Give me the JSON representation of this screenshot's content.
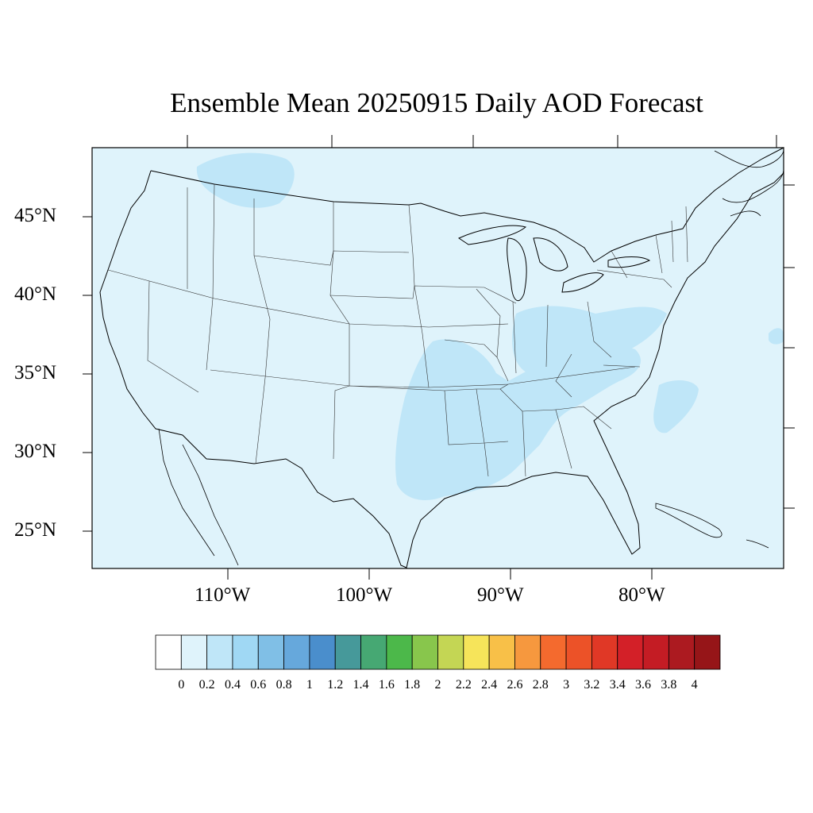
{
  "title": "Ensemble Mean 20250915 Daily AOD Forecast",
  "lat_labels": [
    "45°N",
    "40°N",
    "35°N",
    "30°N",
    "25°N"
  ],
  "lon_labels": [
    "110°W",
    "100°W",
    "90°W",
    "80°W"
  ],
  "colors": {
    "background": "#dff3fb",
    "highlight": "#bfe6f8",
    "coast": "#000000",
    "state_border": "#333333"
  },
  "colorbar": {
    "labels": [
      "0",
      "0.2",
      "0.4",
      "0.6",
      "0.8",
      "1",
      "1.2",
      "1.4",
      "1.6",
      "1.8",
      "2",
      "2.2",
      "2.4",
      "2.6",
      "2.8",
      "3",
      "3.2",
      "3.4",
      "3.6",
      "3.8",
      "4"
    ],
    "colors": [
      "#ffffff",
      "#dff3fb",
      "#bfe6f8",
      "#a0d8f4",
      "#80bfe6",
      "#66a8dc",
      "#4a8ecc",
      "#46999a",
      "#46a873",
      "#4cb84a",
      "#88c64c",
      "#c4d654",
      "#f6e45a",
      "#f8c048",
      "#f6983e",
      "#f46a2e",
      "#ec5228",
      "#e03826",
      "#d32028",
      "#c41c24",
      "#ac1a20",
      "#961518"
    ]
  }
}
